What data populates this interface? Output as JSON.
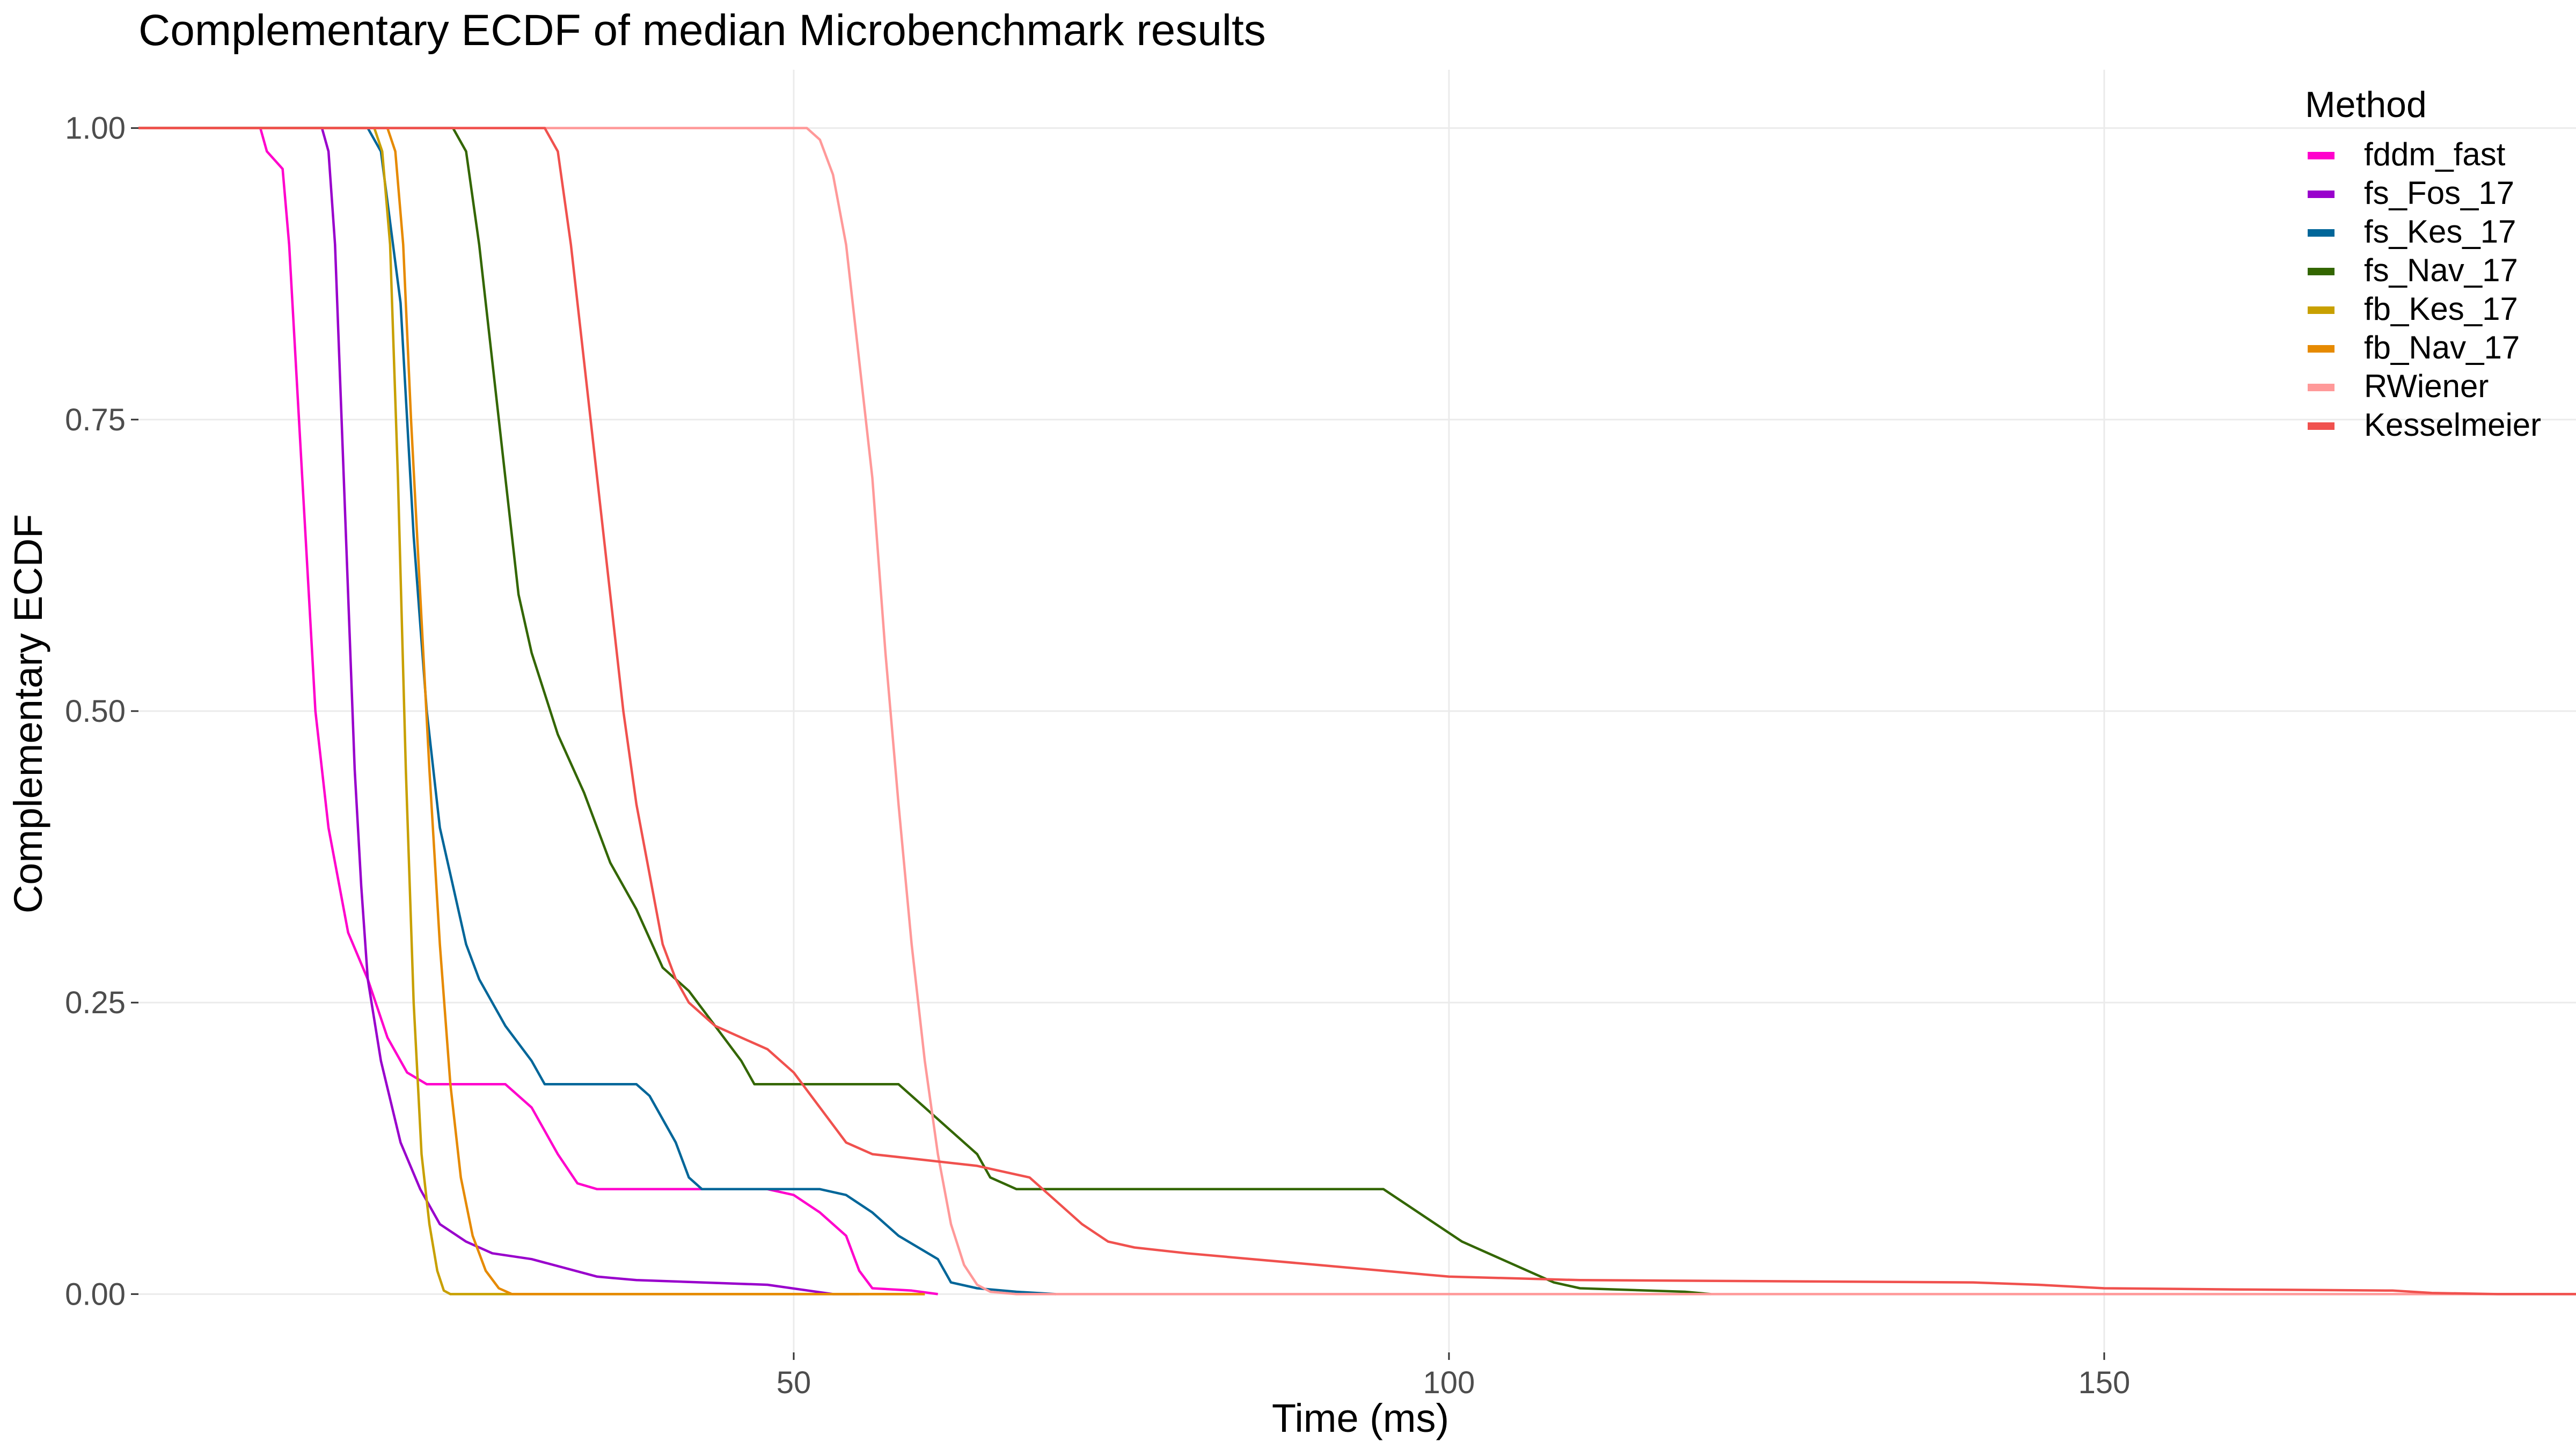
{
  "chart_data": {
    "type": "line",
    "title": "Complementary ECDF of median Microbenchmark results",
    "xlabel": "Time (ms)",
    "ylabel": "Complementary ECDF",
    "xlim": [
      0,
      186
    ],
    "ylim": [
      -0.05,
      1.05
    ],
    "x_ticks": [
      50,
      100,
      150
    ],
    "x_tick_labels": [
      "50",
      "100",
      "150"
    ],
    "y_ticks": [
      0,
      0.25,
      0.5,
      0.75,
      1.0
    ],
    "y_tick_labels": [
      "0.00",
      "0.25",
      "0.50",
      "0.75",
      "1.00"
    ],
    "grid": true,
    "legend": {
      "title": "Method",
      "position": "right-top"
    },
    "series": [
      {
        "name": "fddm_fast",
        "color": "#FF00CC",
        "points": [
          [
            0,
            1
          ],
          [
            9.3,
            1
          ],
          [
            9.8,
            0.98
          ],
          [
            11,
            0.965
          ],
          [
            11.5,
            0.9
          ],
          [
            12,
            0.8
          ],
          [
            12.5,
            0.7
          ],
          [
            13,
            0.6
          ],
          [
            13.5,
            0.5
          ],
          [
            14.5,
            0.4
          ],
          [
            16,
            0.31
          ],
          [
            17.5,
            0.27
          ],
          [
            19,
            0.22
          ],
          [
            20.5,
            0.19
          ],
          [
            22,
            0.18
          ],
          [
            28,
            0.18
          ],
          [
            30,
            0.16
          ],
          [
            32,
            0.12
          ],
          [
            33.5,
            0.095
          ],
          [
            35,
            0.09
          ],
          [
            48,
            0.09
          ],
          [
            50,
            0.085
          ],
          [
            52,
            0.07
          ],
          [
            54,
            0.05
          ],
          [
            55,
            0.02
          ],
          [
            56,
            0.005
          ],
          [
            59,
            0.003
          ],
          [
            61,
            0
          ]
        ]
      },
      {
        "name": "fs_Fos_17",
        "color": "#9900CC",
        "points": [
          [
            0,
            1
          ],
          [
            14,
            1
          ],
          [
            14.5,
            0.98
          ],
          [
            15,
            0.9
          ],
          [
            15.5,
            0.75
          ],
          [
            16,
            0.6
          ],
          [
            16.5,
            0.45
          ],
          [
            17,
            0.35
          ],
          [
            17.5,
            0.27
          ],
          [
            18.5,
            0.2
          ],
          [
            20,
            0.13
          ],
          [
            21.5,
            0.09
          ],
          [
            23,
            0.06
          ],
          [
            25,
            0.045
          ],
          [
            27,
            0.035
          ],
          [
            30,
            0.03
          ],
          [
            35,
            0.015
          ],
          [
            38,
            0.012
          ],
          [
            43,
            0.01
          ],
          [
            48,
            0.008
          ],
          [
            53,
            0
          ],
          [
            55,
            0
          ]
        ]
      },
      {
        "name": "fs_Kes_17",
        "color": "#006699",
        "points": [
          [
            0,
            1
          ],
          [
            17.5,
            1
          ],
          [
            18.5,
            0.98
          ],
          [
            20,
            0.85
          ],
          [
            21,
            0.65
          ],
          [
            22,
            0.5
          ],
          [
            23,
            0.4
          ],
          [
            24,
            0.35
          ],
          [
            25,
            0.3
          ],
          [
            26,
            0.27
          ],
          [
            28,
            0.23
          ],
          [
            30,
            0.2
          ],
          [
            31,
            0.18
          ],
          [
            38,
            0.18
          ],
          [
            39,
            0.17
          ],
          [
            41,
            0.13
          ],
          [
            42,
            0.1
          ],
          [
            43,
            0.09
          ],
          [
            50,
            0.09
          ],
          [
            52,
            0.09
          ],
          [
            54,
            0.085
          ],
          [
            56,
            0.07
          ],
          [
            58,
            0.05
          ],
          [
            61,
            0.03
          ],
          [
            62,
            0.01
          ],
          [
            64,
            0.005
          ],
          [
            67,
            0.002
          ],
          [
            70,
            0
          ]
        ]
      },
      {
        "name": "fs_Nav_17",
        "color": "#336600",
        "points": [
          [
            0,
            1
          ],
          [
            24,
            1
          ],
          [
            25,
            0.98
          ],
          [
            26,
            0.9
          ],
          [
            27,
            0.8
          ],
          [
            28,
            0.7
          ],
          [
            29,
            0.6
          ],
          [
            30,
            0.55
          ],
          [
            32,
            0.48
          ],
          [
            34,
            0.43
          ],
          [
            36,
            0.37
          ],
          [
            38,
            0.33
          ],
          [
            40,
            0.28
          ],
          [
            42,
            0.26
          ],
          [
            44,
            0.23
          ],
          [
            46,
            0.2
          ],
          [
            47,
            0.18
          ],
          [
            58,
            0.18
          ],
          [
            60,
            0.16
          ],
          [
            62,
            0.14
          ],
          [
            64,
            0.12
          ],
          [
            65,
            0.1
          ],
          [
            67,
            0.09
          ],
          [
            95,
            0.09
          ],
          [
            97,
            0.075
          ],
          [
            99,
            0.06
          ],
          [
            101,
            0.045
          ],
          [
            103,
            0.035
          ],
          [
            106,
            0.02
          ],
          [
            108,
            0.01
          ],
          [
            110,
            0.005
          ],
          [
            118,
            0.002
          ],
          [
            120,
            0
          ]
        ]
      },
      {
        "name": "fb_Kes_17",
        "color": "#C8A000",
        "points": [
          [
            0,
            1
          ],
          [
            18,
            1
          ],
          [
            18.6,
            0.98
          ],
          [
            19.2,
            0.9
          ],
          [
            19.8,
            0.7
          ],
          [
            20.4,
            0.45
          ],
          [
            21,
            0.25
          ],
          [
            21.6,
            0.12
          ],
          [
            22.2,
            0.06
          ],
          [
            22.8,
            0.02
          ],
          [
            23.3,
            0.003
          ],
          [
            23.8,
            0
          ],
          [
            60,
            0
          ]
        ]
      },
      {
        "name": "fb_Nav_17",
        "color": "#E68A00",
        "points": [
          [
            0,
            1
          ],
          [
            19,
            1
          ],
          [
            19.6,
            0.98
          ],
          [
            20.2,
            0.9
          ],
          [
            20.8,
            0.75
          ],
          [
            21.5,
            0.6
          ],
          [
            22.2,
            0.45
          ],
          [
            23,
            0.3
          ],
          [
            23.8,
            0.18
          ],
          [
            24.6,
            0.1
          ],
          [
            25.5,
            0.05
          ],
          [
            26.5,
            0.02
          ],
          [
            27.5,
            0.005
          ],
          [
            28.5,
            0
          ],
          [
            60,
            0
          ]
        ]
      },
      {
        "name": "RWiener",
        "color": "#FF9999",
        "points": [
          [
            0,
            1
          ],
          [
            51,
            1
          ],
          [
            52,
            0.99
          ],
          [
            53,
            0.96
          ],
          [
            54,
            0.9
          ],
          [
            55,
            0.8
          ],
          [
            56,
            0.7
          ],
          [
            57,
            0.55
          ],
          [
            58,
            0.42
          ],
          [
            59,
            0.3
          ],
          [
            60,
            0.2
          ],
          [
            61,
            0.12
          ],
          [
            62,
            0.06
          ],
          [
            63,
            0.025
          ],
          [
            64,
            0.008
          ],
          [
            65,
            0.002
          ],
          [
            67,
            0
          ],
          [
            186,
            0
          ]
        ]
      },
      {
        "name": "Kesselmeier",
        "color": "#F0514E",
        "points": [
          [
            0,
            1
          ],
          [
            31,
            1
          ],
          [
            32,
            0.98
          ],
          [
            33,
            0.9
          ],
          [
            34,
            0.8
          ],
          [
            35,
            0.7
          ],
          [
            36,
            0.6
          ],
          [
            37,
            0.5
          ],
          [
            38,
            0.42
          ],
          [
            39,
            0.36
          ],
          [
            40,
            0.3
          ],
          [
            41,
            0.27
          ],
          [
            42,
            0.25
          ],
          [
            44,
            0.23
          ],
          [
            46,
            0.22
          ],
          [
            48,
            0.21
          ],
          [
            50,
            0.19
          ],
          [
            52,
            0.16
          ],
          [
            54,
            0.13
          ],
          [
            56,
            0.12
          ],
          [
            60,
            0.115
          ],
          [
            64,
            0.11
          ],
          [
            68,
            0.1
          ],
          [
            70,
            0.08
          ],
          [
            72,
            0.06
          ],
          [
            74,
            0.045
          ],
          [
            76,
            0.04
          ],
          [
            80,
            0.035
          ],
          [
            85,
            0.03
          ],
          [
            90,
            0.025
          ],
          [
            95,
            0.02
          ],
          [
            100,
            0.015
          ],
          [
            110,
            0.012
          ],
          [
            140,
            0.01
          ],
          [
            145,
            0.008
          ],
          [
            150,
            0.005
          ],
          [
            160,
            0.004
          ],
          [
            172,
            0.003
          ],
          [
            175,
            0.001
          ],
          [
            180,
            0
          ],
          [
            186,
            0
          ]
        ]
      }
    ]
  }
}
